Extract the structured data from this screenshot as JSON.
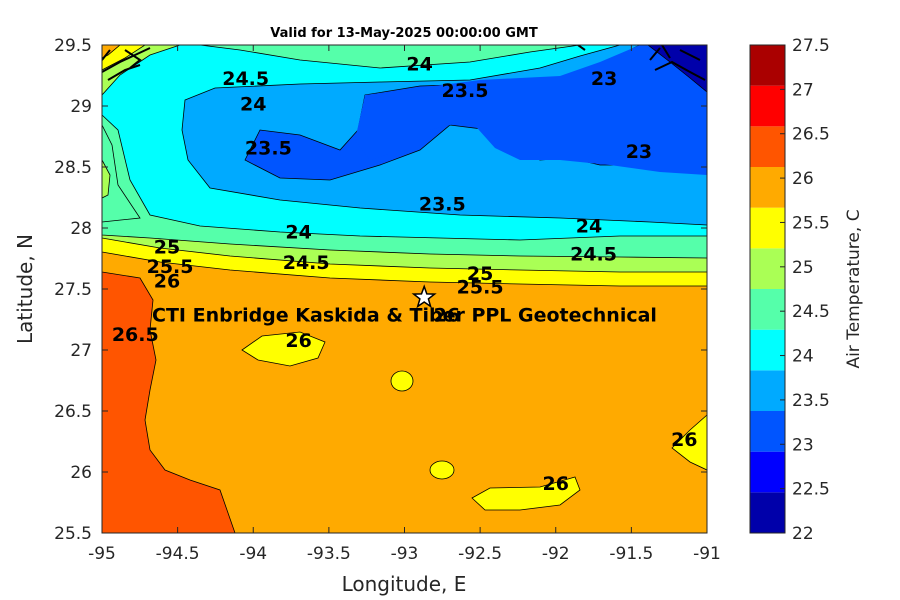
{
  "title": "Valid for 13-May-2025 00:00:00 GMT",
  "colorbar_label": "Air Temperature, C",
  "site": {
    "label": "CTI Enbridge  Kaskida & Tiber PPL Geotechnical",
    "lon": -92.87,
    "lat": 27.43
  },
  "chart_data": {
    "type": "heatmap",
    "title": "Valid for 13-May-2025 00:00:00 GMT",
    "xlabel": "Longitude, E",
    "ylabel": "Latitude, N",
    "xlim": [
      -95,
      -91
    ],
    "ylim": [
      25.5,
      29.5
    ],
    "xticks": [
      "-95",
      "-94.5",
      "-94",
      "-93.5",
      "-93",
      "-92.5",
      "-92",
      "-91.5",
      "-91"
    ],
    "yticks": [
      "25.5",
      "26",
      "26.5",
      "27",
      "27.5",
      "28",
      "28.5",
      "29",
      "29.5"
    ],
    "colorbar": {
      "label": "Air Temperature, C",
      "min": 22,
      "max": 27.5,
      "ticks": [
        "22",
        "22.5",
        "23",
        "23.5",
        "24",
        "24.5",
        "25",
        "25.5",
        "26",
        "26.5",
        "27",
        "27.5"
      ],
      "colors": [
        "#0000aa",
        "#0000ff",
        "#0055ff",
        "#00aaff",
        "#00ffff",
        "#55ffaa",
        "#aaff55",
        "#ffff00",
        "#ffaa00",
        "#ff5500",
        "#ff0000",
        "#aa0000"
      ]
    },
    "contour_labels": [
      {
        "text": "24",
        "lon": -92.9,
        "lat": 29.35
      },
      {
        "text": "24.5",
        "lon": -94.05,
        "lat": 29.23
      },
      {
        "text": "24",
        "lon": -94.0,
        "lat": 29.02
      },
      {
        "text": "23.5",
        "lon": -92.6,
        "lat": 29.13
      },
      {
        "text": "23",
        "lon": -91.68,
        "lat": 29.23
      },
      {
        "text": "23.5",
        "lon": -93.9,
        "lat": 28.66
      },
      {
        "text": "23",
        "lon": -91.45,
        "lat": 28.63
      },
      {
        "text": "23.5",
        "lon": -92.75,
        "lat": 28.2
      },
      {
        "text": "24",
        "lon": -93.7,
        "lat": 27.97
      },
      {
        "text": "24",
        "lon": -91.78,
        "lat": 28.02
      },
      {
        "text": "24.5",
        "lon": -93.65,
        "lat": 27.72
      },
      {
        "text": "24.5",
        "lon": -91.75,
        "lat": 27.79
      },
      {
        "text": "25",
        "lon": -94.57,
        "lat": 27.85
      },
      {
        "text": "25.5",
        "lon": -94.55,
        "lat": 27.69
      },
      {
        "text": "26",
        "lon": -94.57,
        "lat": 27.57
      },
      {
        "text": "25",
        "lon": -92.5,
        "lat": 27.63
      },
      {
        "text": "25.5",
        "lon": -92.5,
        "lat": 27.52
      },
      {
        "text": "26",
        "lon": -92.72,
        "lat": 27.29
      },
      {
        "text": "26.5",
        "lon": -94.78,
        "lat": 27.13
      },
      {
        "text": "26",
        "lon": -93.7,
        "lat": 27.08
      },
      {
        "text": "26",
        "lon": -92.0,
        "lat": 25.91
      },
      {
        "text": "26",
        "lon": -91.15,
        "lat": 26.27
      }
    ]
  }
}
